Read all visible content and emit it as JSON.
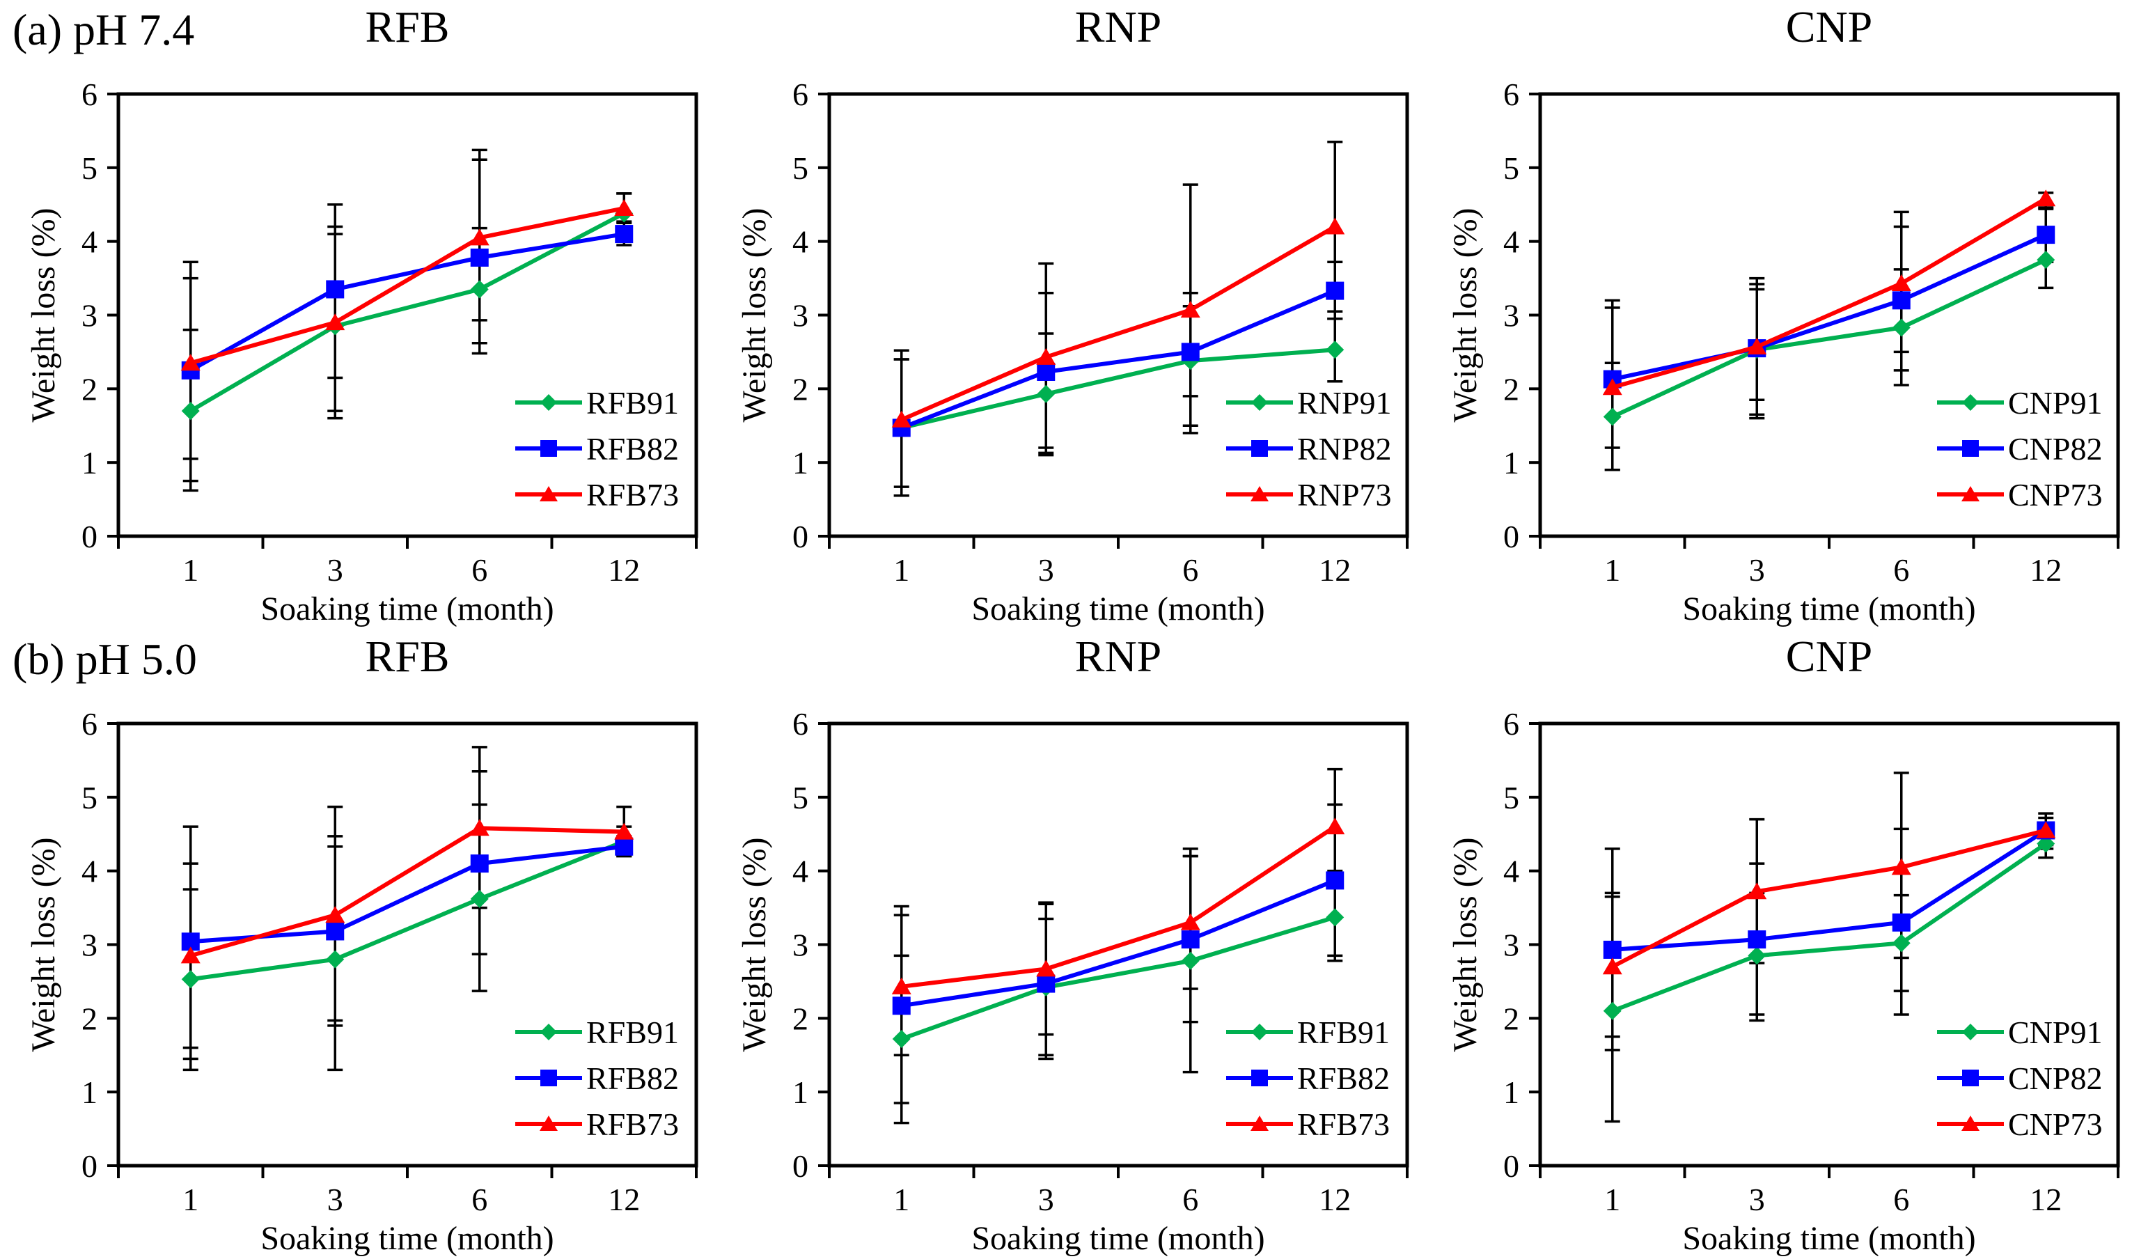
{
  "figure": {
    "rows": [
      {
        "label": "(a) pH 7.4",
        "panel_titles": [
          "RFB",
          "RNP",
          "CNP"
        ]
      },
      {
        "label": "(b) pH 5.0",
        "panel_titles": [
          "RFB",
          "RNP",
          "CNP"
        ]
      }
    ]
  },
  "colors": {
    "green": "#00B050",
    "blue": "#0000FF",
    "red": "#FF0000",
    "black": "#000000",
    "background": "#FFFFFF"
  },
  "chart_data": [
    {
      "id": "a-rfb",
      "type": "line",
      "title": "RFB",
      "row_label": "(a) pH 7.4",
      "xlabel": "Soaking time (month)",
      "ylabel": "Weight loss (%)",
      "categories": [
        "1",
        "3",
        "6",
        "12"
      ],
      "ylim": [
        0,
        6
      ],
      "yticks": [
        "0",
        "1",
        "2",
        "3",
        "4",
        "5",
        "6"
      ],
      "legend_position": "lower right",
      "series": [
        {
          "name": "RFB91",
          "color_key": "green",
          "marker": "diamond",
          "values": [
            1.7,
            2.85,
            3.35,
            4.38
          ],
          "err_lo": [
            0.62,
            1.6,
            2.48,
            4.1
          ],
          "err_hi": [
            2.8,
            4.1,
            4.18,
            4.65
          ]
        },
        {
          "name": "RFB82",
          "color_key": "blue",
          "marker": "square",
          "values": [
            2.25,
            3.35,
            3.78,
            4.1
          ],
          "err_lo": [
            0.75,
            2.15,
            2.62,
            3.95
          ],
          "err_hi": [
            3.5,
            4.5,
            5.11,
            4.27
          ]
        },
        {
          "name": "RFB73",
          "color_key": "red",
          "marker": "triangle",
          "values": [
            2.35,
            2.9,
            4.05,
            4.45
          ],
          "err_lo": [
            1.05,
            1.7,
            2.93,
            4.25
          ],
          "err_hi": [
            3.72,
            4.2,
            5.24,
            4.65
          ]
        }
      ]
    },
    {
      "id": "a-rnp",
      "type": "line",
      "title": "RNP",
      "xlabel": "Soaking time (month)",
      "ylabel": "Weight loss (%)",
      "categories": [
        "1",
        "3",
        "6",
        "12"
      ],
      "ylim": [
        0,
        6
      ],
      "yticks": [
        "0",
        "1",
        "2",
        "3",
        "4",
        "5",
        "6"
      ],
      "legend_position": "lower right",
      "series": [
        {
          "name": "RNP91",
          "color_key": "green",
          "marker": "diamond",
          "values": [
            1.47,
            1.93,
            2.38,
            2.53
          ],
          "err_lo": [
            0.55,
            1.1,
            1.4,
            2.1
          ],
          "err_hi": [
            2.4,
            2.75,
            3.3,
            2.95
          ]
        },
        {
          "name": "RNP82",
          "color_key": "blue",
          "marker": "square",
          "values": [
            1.47,
            2.23,
            2.5,
            3.33
          ],
          "err_lo": [
            0.55,
            1.13,
            1.5,
            2.95
          ],
          "err_hi": [
            2.4,
            3.3,
            3.12,
            3.72
          ]
        },
        {
          "name": "RNP73",
          "color_key": "red",
          "marker": "triangle",
          "values": [
            1.58,
            2.43,
            3.07,
            4.2
          ],
          "err_lo": [
            0.67,
            1.2,
            1.9,
            3.05
          ],
          "err_hi": [
            2.52,
            3.7,
            4.77,
            5.35
          ]
        }
      ]
    },
    {
      "id": "a-cnp",
      "type": "line",
      "title": "CNP",
      "xlabel": "Soaking time (month)",
      "ylabel": "Weight loss (%)",
      "categories": [
        "1",
        "3",
        "6",
        "12"
      ],
      "ylim": [
        0,
        6
      ],
      "yticks": [
        "0",
        "1",
        "2",
        "3",
        "4",
        "5",
        "6"
      ],
      "legend_position": "lower right",
      "series": [
        {
          "name": "CNP91",
          "color_key": "green",
          "marker": "diamond",
          "values": [
            1.62,
            2.53,
            2.83,
            3.75
          ],
          "err_lo": [
            0.9,
            1.6,
            2.05,
            3.37
          ],
          "err_hi": [
            2.35,
            3.35,
            3.62,
            4.13
          ]
        },
        {
          "name": "CNP82",
          "color_key": "blue",
          "marker": "square",
          "values": [
            2.13,
            2.55,
            3.2,
            4.09
          ],
          "err_lo": [
            1.2,
            1.65,
            2.25,
            3.72
          ],
          "err_hi": [
            3.1,
            3.42,
            4.2,
            4.46
          ]
        },
        {
          "name": "CNP73",
          "color_key": "red",
          "marker": "triangle",
          "values": [
            2.02,
            2.57,
            3.43,
            4.58
          ],
          "err_lo": [
            0.9,
            1.85,
            2.5,
            4.44
          ],
          "err_hi": [
            3.2,
            3.5,
            4.4,
            4.66
          ]
        }
      ]
    },
    {
      "id": "b-rfb",
      "type": "line",
      "title": "RFB",
      "row_label": "(b) pH 5.0",
      "xlabel": "Soaking time (month)",
      "ylabel": "Weight loss (%)",
      "categories": [
        "1",
        "3",
        "6",
        "12"
      ],
      "ylim": [
        0,
        6
      ],
      "yticks": [
        "0",
        "1",
        "2",
        "3",
        "4",
        "5",
        "6"
      ],
      "legend_position": "lower right",
      "series": [
        {
          "name": "RFB91",
          "color_key": "green",
          "marker": "diamond",
          "values": [
            2.53,
            2.8,
            3.62,
            4.4
          ],
          "err_lo": [
            1.3,
            1.3,
            2.37,
            4.2
          ],
          "err_hi": [
            3.75,
            4.33,
            4.9,
            4.6
          ]
        },
        {
          "name": "RFB82",
          "color_key": "blue",
          "marker": "square",
          "values": [
            3.04,
            3.18,
            4.1,
            4.33
          ],
          "err_lo": [
            1.45,
            1.9,
            2.87,
            4.2
          ],
          "err_hi": [
            4.6,
            4.47,
            5.35,
            4.47
          ]
        },
        {
          "name": "RFB73",
          "color_key": "red",
          "marker": "triangle",
          "values": [
            2.85,
            3.4,
            4.58,
            4.53
          ],
          "err_lo": [
            1.6,
            1.97,
            3.5,
            4.22
          ],
          "err_hi": [
            4.1,
            4.87,
            5.68,
            4.87
          ]
        }
      ]
    },
    {
      "id": "b-rnp",
      "type": "line",
      "title": "RNP",
      "xlabel": "Soaking time (month)",
      "ylabel": "Weight loss (%)",
      "categories": [
        "1",
        "3",
        "6",
        "12"
      ],
      "ylim": [
        0,
        6
      ],
      "yticks": [
        "0",
        "1",
        "2",
        "3",
        "4",
        "5",
        "6"
      ],
      "legend_position": "lower right",
      "series": [
        {
          "name": "RFB91",
          "color_key": "green",
          "marker": "diamond",
          "values": [
            1.72,
            2.42,
            2.78,
            3.37
          ],
          "err_lo": [
            0.58,
            1.45,
            1.27,
            2.78
          ],
          "err_hi": [
            2.85,
            3.35,
            4.2,
            4.0
          ]
        },
        {
          "name": "RFB82",
          "color_key": "blue",
          "marker": "square",
          "values": [
            2.17,
            2.47,
            3.07,
            3.87
          ],
          "err_lo": [
            0.85,
            1.5,
            1.95,
            2.85
          ],
          "err_hi": [
            3.4,
            3.55,
            4.2,
            4.9
          ]
        },
        {
          "name": "RFB73",
          "color_key": "red",
          "marker": "triangle",
          "values": [
            2.43,
            2.67,
            3.3,
            4.6
          ],
          "err_lo": [
            1.5,
            1.78,
            2.4,
            3.82
          ],
          "err_hi": [
            3.52,
            3.57,
            4.3,
            5.38
          ]
        }
      ]
    },
    {
      "id": "b-cnp",
      "type": "line",
      "title": "CNP",
      "xlabel": "Soaking time (month)",
      "ylabel": "Weight loss (%)",
      "categories": [
        "1",
        "3",
        "6",
        "12"
      ],
      "ylim": [
        0,
        6
      ],
      "yticks": [
        "0",
        "1",
        "2",
        "3",
        "4",
        "5",
        "6"
      ],
      "legend_position": "lower right",
      "series": [
        {
          "name": "CNP91",
          "color_key": "green",
          "marker": "diamond",
          "values": [
            2.1,
            2.85,
            3.02,
            4.37
          ],
          "err_lo": [
            0.6,
            1.97,
            2.37,
            4.18
          ],
          "err_hi": [
            3.65,
            3.7,
            3.67,
            4.57
          ]
        },
        {
          "name": "CNP82",
          "color_key": "blue",
          "marker": "square",
          "values": [
            2.93,
            3.07,
            3.3,
            4.55
          ],
          "err_lo": [
            1.57,
            2.05,
            2.05,
            4.3
          ],
          "err_hi": [
            4.3,
            4.1,
            4.57,
            4.72
          ]
        },
        {
          "name": "CNP73",
          "color_key": "red",
          "marker": "triangle",
          "values": [
            2.7,
            3.72,
            4.05,
            4.55
          ],
          "err_lo": [
            1.75,
            2.75,
            2.82,
            4.35
          ],
          "err_hi": [
            3.7,
            4.7,
            5.33,
            4.78
          ]
        }
      ]
    }
  ]
}
